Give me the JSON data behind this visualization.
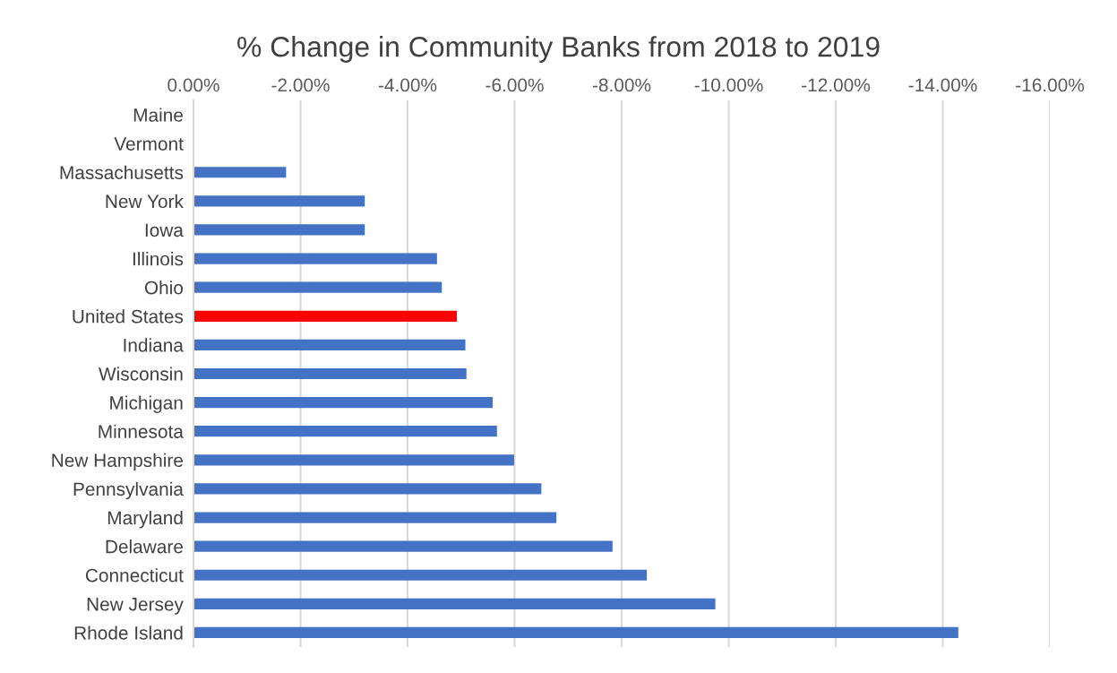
{
  "chart_data": {
    "type": "bar",
    "orientation": "horizontal",
    "title": "% Change in Community Banks from 2018 to 2019",
    "categories": [
      "Maine",
      "Vermont",
      "Massachusetts",
      "New York",
      "Iowa",
      "Illinois",
      "Ohio",
      "United States",
      "Indiana",
      "Wisconsin",
      "Michigan",
      "Minnesota",
      "New Hampshire",
      "Pennsylvania",
      "Maryland",
      "Delaware",
      "Connecticut",
      "New Jersey",
      "Rhode Island"
    ],
    "values": [
      0,
      0,
      -1.73,
      -3.2,
      -3.2,
      -4.55,
      -4.64,
      -4.92,
      -5.08,
      -5.1,
      -5.59,
      -5.67,
      -5.99,
      -6.5,
      -6.78,
      -7.83,
      -8.47,
      -9.75,
      -14.29
    ],
    "colors": [
      "#4472c4",
      "#4472c4",
      "#4472c4",
      "#4472c4",
      "#4472c4",
      "#4472c4",
      "#4472c4",
      "#ff0000",
      "#4472c4",
      "#4472c4",
      "#4472c4",
      "#4472c4",
      "#4472c4",
      "#4472c4",
      "#4472c4",
      "#4472c4",
      "#4472c4",
      "#4472c4",
      "#4472c4"
    ],
    "xlim": [
      0,
      -16
    ],
    "xticks": [
      {
        "value": 0,
        "label": "0.00%"
      },
      {
        "value": -2,
        "label": "-2.00%"
      },
      {
        "value": -4,
        "label": "-4.00%"
      },
      {
        "value": -6,
        "label": "-6.00%"
      },
      {
        "value": -8,
        "label": "-8.00%"
      },
      {
        "value": -10,
        "label": "-10.00%"
      },
      {
        "value": -12,
        "label": "-12.00%"
      },
      {
        "value": -14,
        "label": "-14.00%"
      },
      {
        "value": -16,
        "label": "-16.00%"
      }
    ],
    "grid": "x",
    "legend": false
  }
}
